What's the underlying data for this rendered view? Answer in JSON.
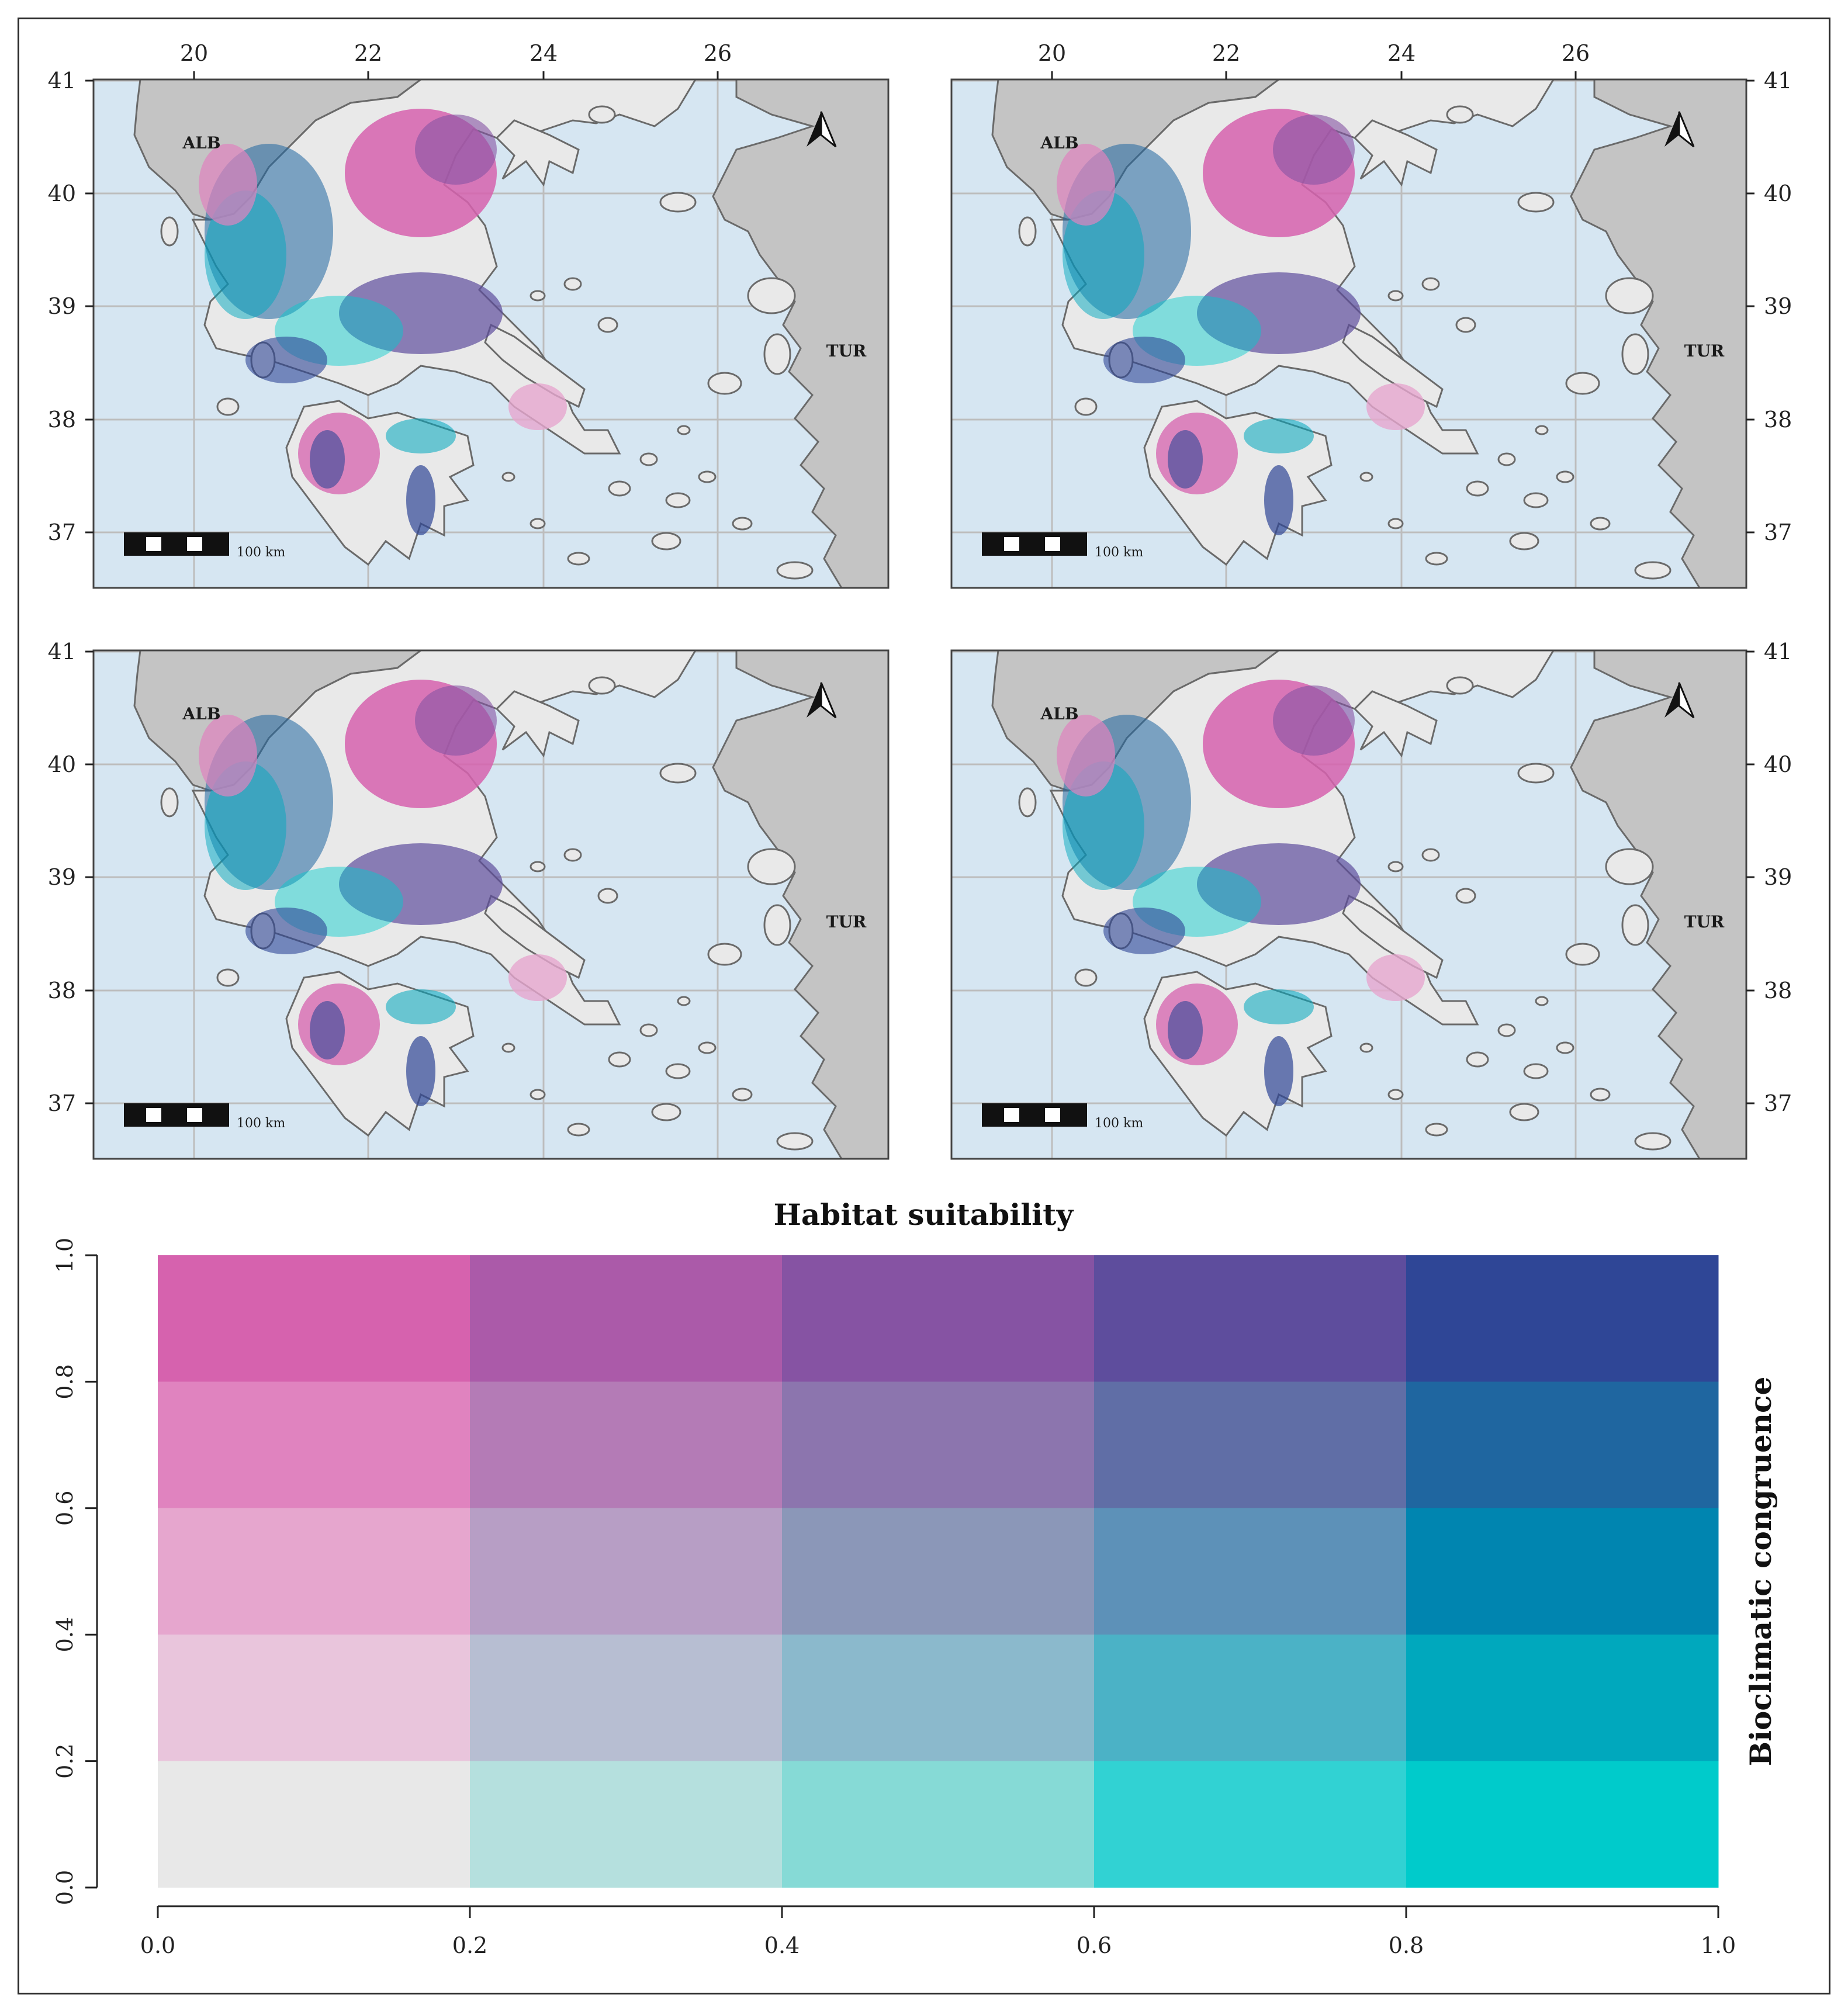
{
  "maps": [
    {
      "id": "top-left",
      "lon_ticks": [
        "20",
        "22",
        "24",
        "26"
      ],
      "lat_ticks": [
        "41",
        "40",
        "39",
        "38",
        "37"
      ],
      "lat_side": "left",
      "lon_top": true
    },
    {
      "id": "top-right",
      "lon_ticks": [
        "20",
        "22",
        "24",
        "26"
      ],
      "lat_ticks": [
        "41",
        "40",
        "39",
        "38",
        "37"
      ],
      "lat_side": "right",
      "lon_top": true
    },
    {
      "id": "bottom-left",
      "lon_ticks": [],
      "lat_ticks": [
        "41",
        "40",
        "39",
        "38",
        "37"
      ],
      "lat_side": "left",
      "lon_top": false
    },
    {
      "id": "bottom-right",
      "lon_ticks": [],
      "lat_ticks": [
        "41",
        "40",
        "39",
        "38",
        "37"
      ],
      "lat_side": "right",
      "lon_top": false
    }
  ],
  "map_labels": {
    "albania": "ALB",
    "turkey": "TUR",
    "scale": "100 km"
  },
  "map_colors": {
    "sea": "#d6e6f2",
    "land": "#e9e9e9",
    "foreign": "#c4c4c4",
    "outline": "#6a6a6a",
    "grid": "#bdbdbd"
  },
  "legend": {
    "title": "Habitat suitability",
    "y_title": "Bioclimatic congruence",
    "x_ticks": [
      "0.0",
      "0.2",
      "0.4",
      "0.6",
      "0.8",
      "1.0"
    ],
    "y_ticks": [
      "0.0",
      "0.2",
      "0.4",
      "0.6",
      "0.8",
      "1.0"
    ],
    "grid_rows_top_to_bottom": [
      [
        "#d662ae",
        "#ab5aa9",
        "#8653a3",
        "#5e4d9d",
        "#2f4696"
      ],
      [
        "#e083bf",
        "#b47bb6",
        "#8c75ae",
        "#606ea6",
        "#1f66a0"
      ],
      [
        "#e6a6ce",
        "#b79ec5",
        "#8b97b8",
        "#5d91b8",
        "#0085b0"
      ],
      [
        "#e9c5dc",
        "#b7bed2",
        "#8bb9cc",
        "#4bb2c6",
        "#00a8bd"
      ],
      [
        "#e8e8e8",
        "#b5e0de",
        "#86dad6",
        "#31d2d3",
        "#00cbcb"
      ]
    ]
  }
}
